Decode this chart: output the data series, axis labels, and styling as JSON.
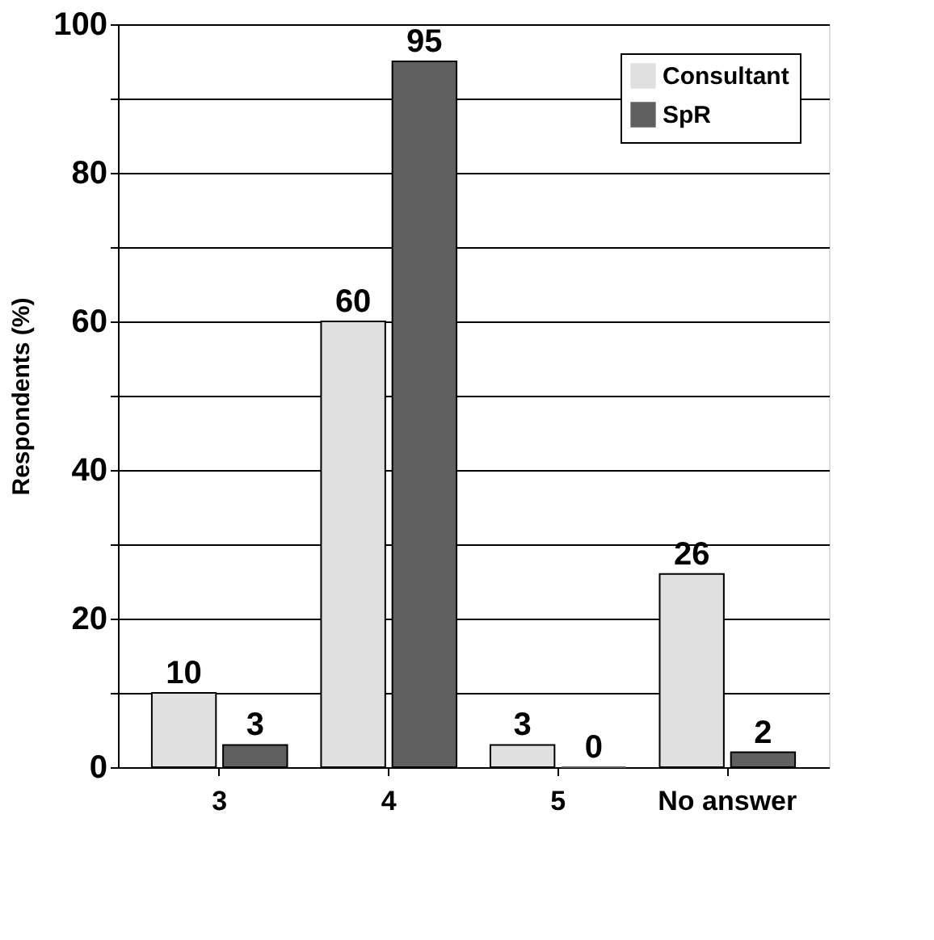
{
  "chart_data": {
    "type": "bar",
    "ylabel": "Respondents (%)",
    "categories": [
      "3",
      "4",
      "5",
      "No answer"
    ],
    "series": [
      {
        "name": "Consultant",
        "color": "#e0e0e0",
        "values": [
          10,
          60,
          3,
          26
        ]
      },
      {
        "name": "SpR",
        "color": "#606060",
        "values": [
          3,
          95,
          0,
          2
        ]
      }
    ],
    "ylim": [
      0,
      100
    ],
    "yticks": [
      0,
      {
        "value": 10,
        "label": null
      },
      20,
      {
        "value": 30,
        "label": null
      },
      40,
      {
        "value": 50,
        "label": null
      },
      60,
      {
        "value": 70,
        "label": null
      },
      80,
      {
        "value": 90,
        "label": null
      },
      100
    ],
    "grid": "y",
    "legend": "top right",
    "data_labels": true
  }
}
